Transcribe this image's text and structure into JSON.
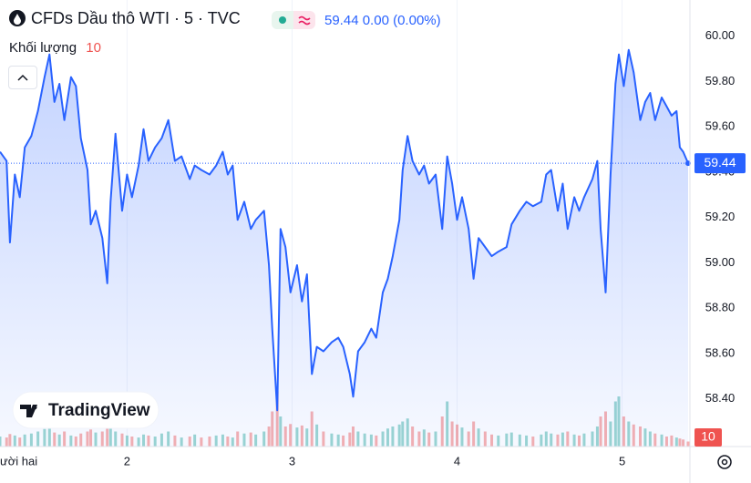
{
  "header": {
    "title": "CFDs Dầu thô WTI · 5 · TVC",
    "price": "59.44",
    "change": "0.00",
    "change_percent": "(0.00%)",
    "volume_label": "Khối lượng",
    "brand": "TradingView"
  },
  "chart_data": {
    "type": "line",
    "x": [
      1.23,
      1.27,
      1.29,
      1.32,
      1.35,
      1.38,
      1.42,
      1.46,
      1.5,
      1.53,
      1.56,
      1.59,
      1.62,
      1.66,
      1.69,
      1.72,
      1.76,
      1.78,
      1.81,
      1.85,
      1.88,
      1.9,
      1.93,
      1.97,
      2.0,
      2.03,
      2.07,
      2.1,
      2.13,
      2.17,
      2.21,
      2.25,
      2.29,
      2.33,
      2.38,
      2.41,
      2.45,
      2.5,
      2.54,
      2.58,
      2.61,
      2.64,
      2.67,
      2.71,
      2.75,
      2.78,
      2.83,
      2.86,
      2.88,
      2.91,
      2.93,
      2.96,
      2.99,
      3.03,
      3.06,
      3.09,
      3.12,
      3.15,
      3.19,
      3.24,
      3.28,
      3.31,
      3.35,
      3.37,
      3.4,
      3.44,
      3.48,
      3.51,
      3.55,
      3.58,
      3.61,
      3.65,
      3.67,
      3.7,
      3.73,
      3.77,
      3.8,
      3.83,
      3.87,
      3.91,
      3.94,
      3.97,
      4.0,
      4.03,
      4.07,
      4.1,
      4.13,
      4.17,
      4.21,
      4.25,
      4.3,
      4.33,
      4.38,
      4.42,
      4.46,
      4.51,
      4.54,
      4.57,
      4.61,
      4.64,
      4.67,
      4.71,
      4.74,
      4.77,
      4.82,
      4.85,
      4.87,
      4.9,
      4.93,
      4.96,
      4.98,
      5.01,
      5.04,
      5.07,
      5.11,
      5.14,
      5.17,
      5.2,
      5.24,
      5.27,
      5.3,
      5.33,
      5.35,
      5.37,
      5.4
    ],
    "values": [
      59.49,
      59.45,
      59.09,
      59.39,
      59.29,
      59.51,
      59.56,
      59.67,
      59.82,
      59.92,
      59.71,
      59.79,
      59.63,
      59.82,
      59.78,
      59.55,
      59.41,
      59.17,
      59.23,
      59.11,
      58.91,
      59.27,
      59.57,
      59.23,
      59.39,
      59.29,
      59.43,
      59.59,
      59.45,
      59.51,
      59.55,
      59.63,
      59.45,
      59.47,
      59.37,
      59.43,
      59.41,
      59.39,
      59.43,
      59.49,
      59.39,
      59.43,
      59.19,
      59.27,
      59.15,
      59.19,
      59.23,
      58.99,
      58.71,
      58.35,
      59.15,
      59.07,
      58.87,
      58.99,
      58.83,
      58.95,
      58.51,
      58.63,
      58.61,
      58.65,
      58.67,
      58.63,
      58.51,
      58.41,
      58.61,
      58.65,
      58.71,
      58.67,
      58.87,
      58.93,
      59.03,
      59.19,
      59.41,
      59.56,
      59.45,
      59.39,
      59.43,
      59.35,
      59.39,
      59.15,
      59.47,
      59.35,
      59.19,
      59.29,
      59.15,
      58.93,
      59.11,
      59.07,
      59.03,
      59.05,
      59.07,
      59.17,
      59.23,
      59.27,
      59.25,
      59.27,
      59.39,
      59.41,
      59.23,
      59.35,
      59.15,
      59.29,
      59.23,
      59.29,
      59.37,
      59.45,
      59.15,
      58.87,
      59.39,
      59.79,
      59.92,
      59.78,
      59.94,
      59.84,
      59.63,
      59.71,
      59.75,
      59.63,
      59.73,
      59.69,
      59.65,
      59.67,
      59.51,
      59.49,
      59.44
    ],
    "volume": [
      20,
      18,
      25,
      22,
      18,
      24,
      26,
      30,
      35,
      40,
      28,
      24,
      30,
      22,
      20,
      26,
      30,
      34,
      28,
      30,
      36,
      40,
      30,
      26,
      22,
      20,
      18,
      24,
      22,
      20,
      26,
      30,
      22,
      18,
      20,
      24,
      18,
      20,
      22,
      24,
      20,
      18,
      30,
      26,
      28,
      24,
      30,
      40,
      70,
      110,
      60,
      40,
      45,
      38,
      42,
      36,
      70,
      44,
      30,
      26,
      24,
      22,
      28,
      40,
      30,
      26,
      24,
      22,
      30,
      36,
      40,
      44,
      50,
      56,
      40,
      30,
      34,
      28,
      30,
      60,
      90,
      50,
      44,
      38,
      30,
      50,
      36,
      30,
      24,
      22,
      26,
      28,
      24,
      22,
      20,
      24,
      30,
      26,
      24,
      28,
      30,
      24,
      22,
      26,
      30,
      40,
      60,
      70,
      50,
      90,
      100,
      60,
      50,
      44,
      40,
      36,
      30,
      26,
      24,
      20,
      22,
      18,
      16,
      14,
      10
    ],
    "color": "#2962ff",
    "up_color": "#26a69a",
    "down_color": "#ef5350",
    "xlim": [
      1.23,
      5.4
    ],
    "xticks": [
      {
        "value": 1,
        "label": "ười hai"
      },
      2,
      3,
      4,
      5
    ],
    "ylim": [
      58.19,
      60.16
    ],
    "yticks": [
      {
        "value": 58.4,
        "label": "58.40"
      },
      {
        "value": 58.6,
        "label": "58.60"
      },
      {
        "value": 58.8,
        "label": "58.80"
      },
      {
        "value": 59,
        "label": "59.00"
      },
      {
        "value": 59.2,
        "label": "59.20"
      },
      {
        "value": 59.4,
        "label": "59.40"
      },
      {
        "value": 59.6,
        "label": "59.60"
      },
      {
        "value": 59.8,
        "label": "59.80"
      },
      {
        "value": 60,
        "label": "60.00"
      }
    ],
    "vlim": [
      0,
      200
    ],
    "grid": true
  }
}
